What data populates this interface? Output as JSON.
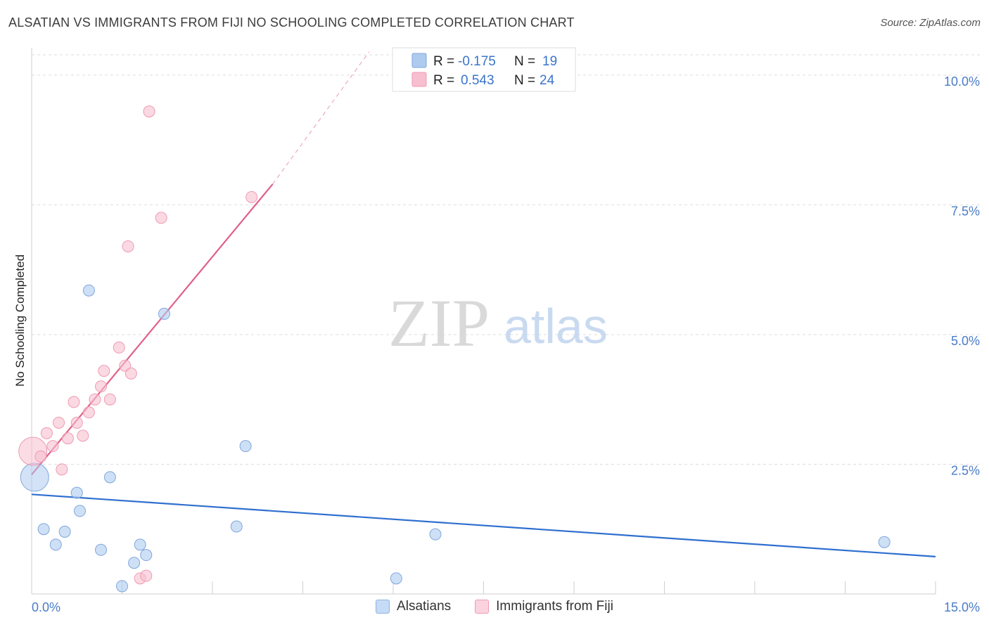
{
  "header": {
    "title": "ALSATIAN VS IMMIGRANTS FROM FIJI NO SCHOOLING COMPLETED CORRELATION CHART",
    "source": "Source: ZipAtlas.com"
  },
  "stats_legend": {
    "r_label": "R =",
    "n_label": "N =",
    "rows": [
      {
        "r": "-0.175",
        "n": "19",
        "color": "#aecbef"
      },
      {
        "r": "0.543",
        "n": "24",
        "color": "#f7bfd0"
      }
    ]
  },
  "watermark": {
    "zip": "ZIP",
    "atlas": "atlas"
  },
  "bottom_legend": [
    {
      "label": "Alsatians",
      "fill": "#c6dbf5",
      "stroke": "#8fb3e6"
    },
    {
      "label": "Immigrants from Fiji",
      "fill": "#fbd3df",
      "stroke": "#f09ab4"
    }
  ],
  "chart_data": {
    "type": "scatter",
    "title": "ALSATIAN VS IMMIGRANTS FROM FIJI NO SCHOOLING COMPLETED CORRELATION CHART",
    "xlabel": "",
    "ylabel": "No Schooling Completed",
    "xlim": [
      0,
      15
    ],
    "ylim": [
      0,
      10.5
    ],
    "x_tick_labels": [
      "0.0%",
      "15.0%"
    ],
    "y_ticks": [
      2.5,
      5.0,
      7.5,
      10.0
    ],
    "y_tick_labels": [
      "2.5%",
      "5.0%",
      "7.5%",
      "10.0%"
    ],
    "grid": "horizontal dashed",
    "series": [
      {
        "name": "Alsatians",
        "color": "#aecbef",
        "stroke": "#7fa6dd",
        "points": [
          {
            "x": 0.05,
            "y": 2.25,
            "big": true
          },
          {
            "x": 0.2,
            "y": 1.25
          },
          {
            "x": 0.4,
            "y": 0.95
          },
          {
            "x": 0.55,
            "y": 1.2
          },
          {
            "x": 0.75,
            "y": 1.95
          },
          {
            "x": 0.8,
            "y": 1.6
          },
          {
            "x": 0.95,
            "y": 5.85
          },
          {
            "x": 1.15,
            "y": 0.85
          },
          {
            "x": 1.3,
            "y": 2.25
          },
          {
            "x": 1.5,
            "y": 0.15
          },
          {
            "x": 1.7,
            "y": 0.6
          },
          {
            "x": 1.8,
            "y": 0.95
          },
          {
            "x": 1.9,
            "y": 0.75
          },
          {
            "x": 2.2,
            "y": 5.4
          },
          {
            "x": 3.4,
            "y": 1.3
          },
          {
            "x": 3.55,
            "y": 2.85
          },
          {
            "x": 6.05,
            "y": 0.3
          },
          {
            "x": 6.7,
            "y": 1.15
          },
          {
            "x": 14.15,
            "y": 1.0
          }
        ],
        "trend": {
          "x1": 0,
          "y1": 1.92,
          "x2": 15,
          "y2": 0.72
        }
      },
      {
        "name": "Immigrants from Fiji",
        "color": "#f7bfd0",
        "stroke": "#ef9ab3",
        "points": [
          {
            "x": 0.02,
            "y": 2.75,
            "big": true
          },
          {
            "x": 0.15,
            "y": 2.65
          },
          {
            "x": 0.25,
            "y": 3.1
          },
          {
            "x": 0.35,
            "y": 2.85
          },
          {
            "x": 0.45,
            "y": 3.3
          },
          {
            "x": 0.5,
            "y": 2.4
          },
          {
            "x": 0.6,
            "y": 3.0
          },
          {
            "x": 0.7,
            "y": 3.7
          },
          {
            "x": 0.75,
            "y": 3.3
          },
          {
            "x": 0.85,
            "y": 3.05
          },
          {
            "x": 0.95,
            "y": 3.5
          },
          {
            "x": 1.05,
            "y": 3.75
          },
          {
            "x": 1.15,
            "y": 4.0
          },
          {
            "x": 1.2,
            "y": 4.3
          },
          {
            "x": 1.3,
            "y": 3.75
          },
          {
            "x": 1.45,
            "y": 4.75
          },
          {
            "x": 1.55,
            "y": 4.4
          },
          {
            "x": 1.6,
            "y": 6.7
          },
          {
            "x": 1.65,
            "y": 4.25
          },
          {
            "x": 1.8,
            "y": 0.3
          },
          {
            "x": 1.9,
            "y": 0.35
          },
          {
            "x": 1.95,
            "y": 9.3
          },
          {
            "x": 2.15,
            "y": 7.25
          },
          {
            "x": 3.65,
            "y": 7.65
          }
        ],
        "trend": {
          "x1": 0,
          "y1": 2.3,
          "x2": 4.0,
          "y2": 7.9
        },
        "trend_dashed": {
          "x1": 4.0,
          "y1": 7.9,
          "x2": 5.6,
          "y2": 10.45
        }
      }
    ]
  }
}
